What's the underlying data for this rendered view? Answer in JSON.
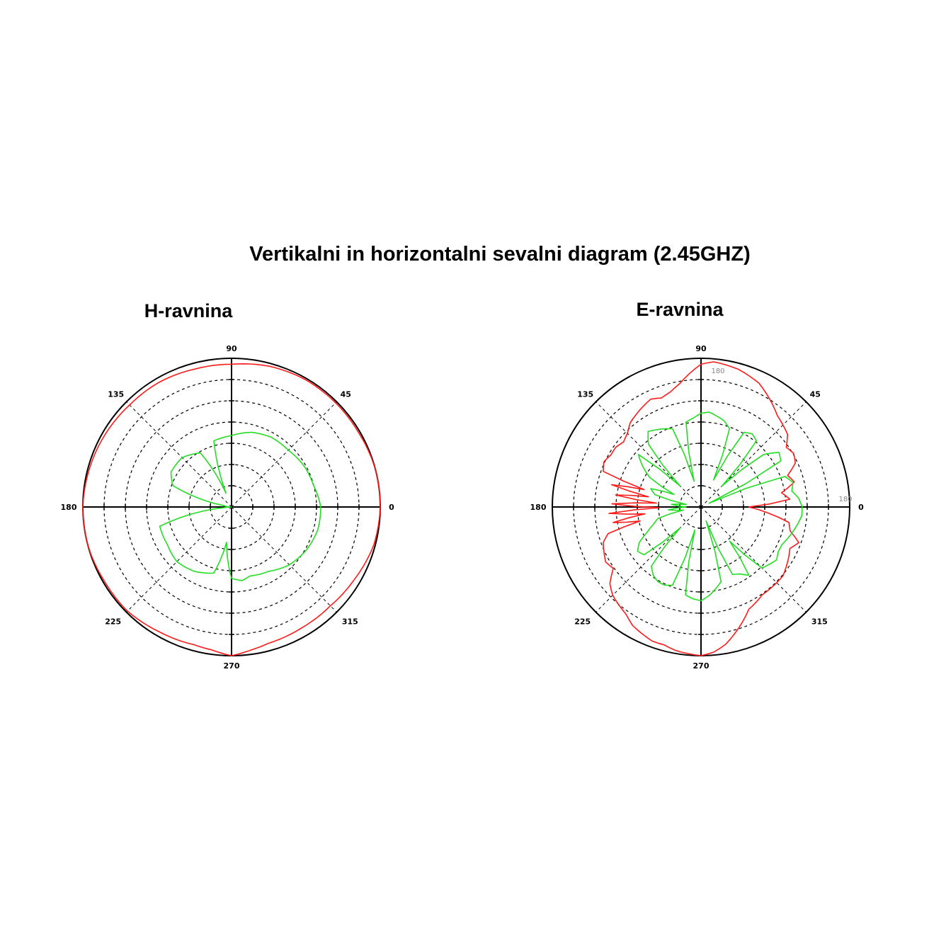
{
  "title": "Vertikalni in horizontalni sevalni diagram (2.45GHZ)",
  "colors": {
    "red": "#ff1a1a",
    "green": "#22dd22",
    "grid": "#000000"
  },
  "chart_data": [
    {
      "type": "line",
      "polar": true,
      "title": "H-ravnina",
      "angle_ticks": [
        "0",
        "45",
        "90",
        "135",
        "180",
        "225",
        "270",
        "315"
      ],
      "grid": true,
      "rings": 6,
      "radial_max": 1.0,
      "series": [
        {
          "color": "#ff1a1a",
          "theta": [
            0,
            15,
            30,
            45,
            60,
            75,
            90,
            105,
            120,
            135,
            150,
            165,
            180,
            195,
            210,
            225,
            240,
            255,
            262,
            270,
            278,
            285,
            300,
            315,
            330,
            345,
            360
          ],
          "r": [
            1.0,
            1.0,
            0.99,
            0.99,
            0.99,
            0.98,
            0.96,
            0.96,
            0.97,
            0.97,
            0.98,
            0.99,
            1.0,
            1.0,
            0.99,
            0.99,
            0.97,
            0.96,
            0.97,
            1.0,
            0.97,
            0.95,
            0.94,
            0.94,
            0.96,
            0.99,
            1.0
          ]
        },
        {
          "color": "#22dd22",
          "theta": [
            0,
            15,
            30,
            45,
            60,
            75,
            90,
            105,
            112,
            120,
            135,
            150,
            160,
            170,
            175,
            180,
            185,
            195,
            210,
            225,
            240,
            255,
            262,
            270,
            278,
            285,
            300,
            315,
            330,
            345,
            360
          ],
          "r": [
            0.6,
            0.57,
            0.56,
            0.54,
            0.54,
            0.52,
            0.48,
            0.46,
            0.1,
            0.42,
            0.47,
            0.47,
            0.42,
            0.05,
            0.03,
            0.0,
            0.05,
            0.5,
            0.5,
            0.52,
            0.5,
            0.46,
            0.24,
            0.48,
            0.5,
            0.48,
            0.5,
            0.55,
            0.58,
            0.6,
            0.6
          ]
        }
      ]
    },
    {
      "type": "line",
      "polar": true,
      "title": "E-ravnina",
      "angle_ticks": [
        "0",
        "45",
        "90",
        "135",
        "180",
        "225",
        "270",
        "315"
      ],
      "annotations": [
        "180",
        "180"
      ],
      "grid": true,
      "rings": 6,
      "radial_max": 1.0,
      "series": [
        {
          "color": "#ff1a1a",
          "theta": [
            0,
            5,
            10,
            15,
            20,
            25,
            30,
            35,
            40,
            45,
            50,
            55,
            60,
            65,
            70,
            75,
            80,
            85,
            90,
            95,
            100,
            105,
            110,
            115,
            120,
            125,
            130,
            135,
            140,
            145,
            150,
            155,
            160,
            163,
            166,
            169,
            172,
            175,
            178,
            181,
            184,
            187,
            190,
            193,
            196,
            200,
            205,
            210,
            215,
            220,
            225,
            230,
            235,
            240,
            245,
            250,
            255,
            260,
            265,
            270,
            275,
            280,
            285,
            290,
            295,
            300,
            305,
            310,
            315,
            320,
            325,
            330,
            335,
            340,
            345,
            350,
            355,
            360
          ],
          "r": [
            0.32,
            0.6,
            0.55,
            0.65,
            0.62,
            0.7,
            0.72,
            0.7,
            0.76,
            0.78,
            0.8,
            0.84,
            0.88,
            0.92,
            0.94,
            0.96,
            0.97,
            0.98,
            0.96,
            0.9,
            0.84,
            0.8,
            0.78,
            0.8,
            0.78,
            0.76,
            0.74,
            0.7,
            0.68,
            0.7,
            0.7,
            0.72,
            0.7,
            0.4,
            0.62,
            0.36,
            0.58,
            0.3,
            0.6,
            0.28,
            0.62,
            0.38,
            0.6,
            0.42,
            0.65,
            0.7,
            0.72,
            0.74,
            0.72,
            0.8,
            0.84,
            0.86,
            0.88,
            0.92,
            0.94,
            0.96,
            0.96,
            0.98,
            0.99,
            1.0,
            0.98,
            0.94,
            0.88,
            0.82,
            0.76,
            0.74,
            0.72,
            0.72,
            0.72,
            0.72,
            0.7,
            0.68,
            0.66,
            0.7,
            0.62,
            0.6,
            0.45,
            0.32
          ]
        },
        {
          "color": "#22dd22",
          "theta": [
            0,
            5,
            10,
            15,
            20,
            25,
            30,
            35,
            40,
            45,
            50,
            55,
            60,
            65,
            70,
            75,
            80,
            85,
            90,
            95,
            100,
            105,
            110,
            115,
            120,
            125,
            130,
            135,
            140,
            145,
            150,
            155,
            160,
            165,
            170,
            175,
            180,
            185,
            190,
            195,
            200,
            205,
            210,
            215,
            220,
            225,
            230,
            235,
            240,
            245,
            250,
            255,
            260,
            265,
            270,
            275,
            280,
            285,
            290,
            295,
            300,
            305,
            310,
            315,
            320,
            325,
            330,
            335,
            340,
            345,
            350,
            355,
            360
          ],
          "r": [
            0.68,
            0.66,
            0.62,
            0.64,
            0.6,
            0.06,
            0.62,
            0.64,
            0.55,
            0.2,
            0.58,
            0.6,
            0.58,
            0.2,
            0.56,
            0.6,
            0.62,
            0.64,
            0.63,
            0.6,
            0.58,
            0.18,
            0.56,
            0.58,
            0.6,
            0.62,
            0.55,
            0.2,
            0.55,
            0.48,
            0.4,
            0.2,
            0.36,
            0.32,
            0.1,
            0.2,
            0.1,
            0.22,
            0.12,
            0.3,
            0.34,
            0.4,
            0.48,
            0.52,
            0.5,
            0.2,
            0.52,
            0.56,
            0.58,
            0.58,
            0.56,
            0.16,
            0.6,
            0.62,
            0.63,
            0.6,
            0.56,
            0.52,
            0.1,
            0.5,
            0.52,
            0.56,
            0.3,
            0.58,
            0.6,
            0.62,
            0.6,
            0.6,
            0.62,
            0.64,
            0.66,
            0.68,
            0.68
          ]
        }
      ]
    }
  ]
}
